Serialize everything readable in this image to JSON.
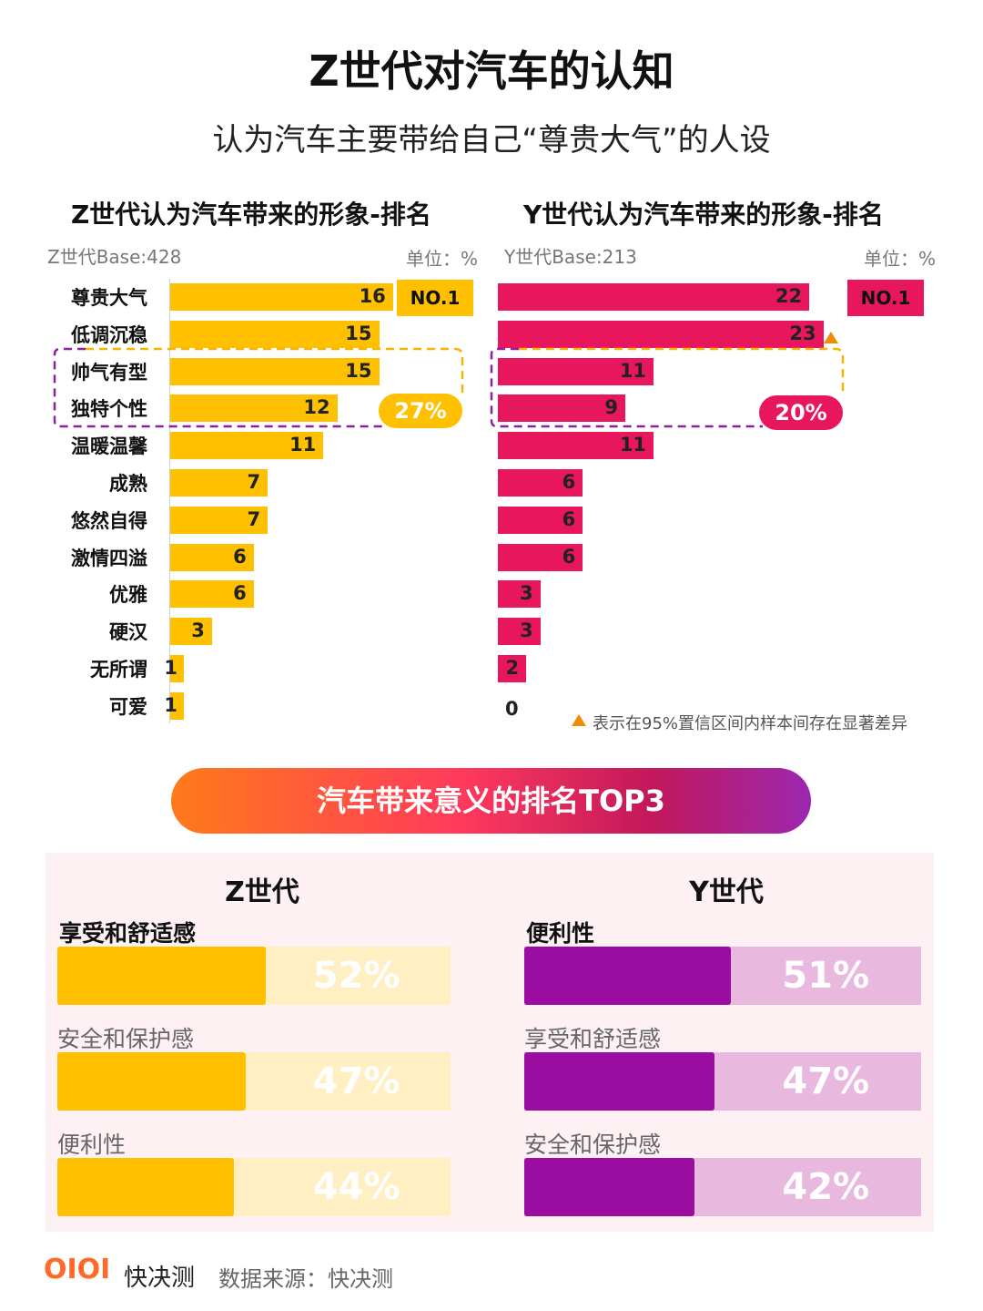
{
  "title": "Z世代对汽车的认知",
  "subtitle": "认为汽车主要带给自己“尊贵大气”的人设",
  "colors": {
    "z": "#FFC000",
    "y": "#E8175D",
    "y_top3": "#9A0DA0",
    "sig_marker": "#F08C00"
  },
  "chart_data": [
    {
      "type": "bar",
      "orientation": "horizontal",
      "title": "Z世代认为汽车带来的形象-排名",
      "base": "Z世代Base:428",
      "unit": "单位：%",
      "categories": [
        "尊贵大气",
        "低调沉稳",
        "帅气有型",
        "独特个性",
        "温暖温馨",
        "成熟",
        "悠然自得",
        "激情四溢",
        "优雅",
        "硬汉",
        "无所谓",
        "可爱"
      ],
      "values": [
        16,
        15,
        15,
        12,
        11,
        7,
        7,
        6,
        6,
        3,
        1,
        1
      ],
      "rank_badge": "NO.1",
      "group_highlight": {
        "categories": [
          "帅气有型",
          "独特个性"
        ],
        "label": "27%"
      },
      "xlim": [
        0,
        16
      ]
    },
    {
      "type": "bar",
      "orientation": "horizontal",
      "title": "Y世代认为汽车带来的形象-排名",
      "base": "Y世代Base:213",
      "unit": "单位：%",
      "categories": [
        "尊贵大气",
        "低调沉稳",
        "帅气有型",
        "独特个性",
        "温暖温馨",
        "成熟",
        "悠然自得",
        "激情四溢",
        "优雅",
        "硬汉",
        "无所谓",
        "可爱"
      ],
      "values": [
        22,
        23,
        11,
        9,
        11,
        6,
        6,
        6,
        3,
        3,
        2,
        0
      ],
      "rank_badge": "NO.1",
      "group_highlight": {
        "categories": [
          "帅气有型",
          "独特个性"
        ],
        "label": "20%"
      },
      "significant": [
        "低调沉稳"
      ],
      "xlim": [
        0,
        23
      ]
    },
    {
      "type": "bar",
      "title": "Z世代",
      "categories": [
        "享受和舒适感",
        "安全和保护感",
        "便利性"
      ],
      "values": [
        52,
        47,
        44
      ],
      "value_labels": [
        "52%",
        "47%",
        "44%"
      ]
    },
    {
      "type": "bar",
      "title": "Y世代",
      "categories": [
        "便利性",
        "享受和舒适感",
        "安全和保护感"
      ],
      "values": [
        51,
        47,
        42
      ],
      "value_labels": [
        "51%",
        "47%",
        "42%"
      ]
    }
  ],
  "sig_note": "表示在95%置信区间内样本间存在显著差异",
  "banner": "汽车带来意义的排名TOP3",
  "footer": {
    "logo": "OIOI",
    "brand": "快决测",
    "source": "数据来源：快决测"
  }
}
